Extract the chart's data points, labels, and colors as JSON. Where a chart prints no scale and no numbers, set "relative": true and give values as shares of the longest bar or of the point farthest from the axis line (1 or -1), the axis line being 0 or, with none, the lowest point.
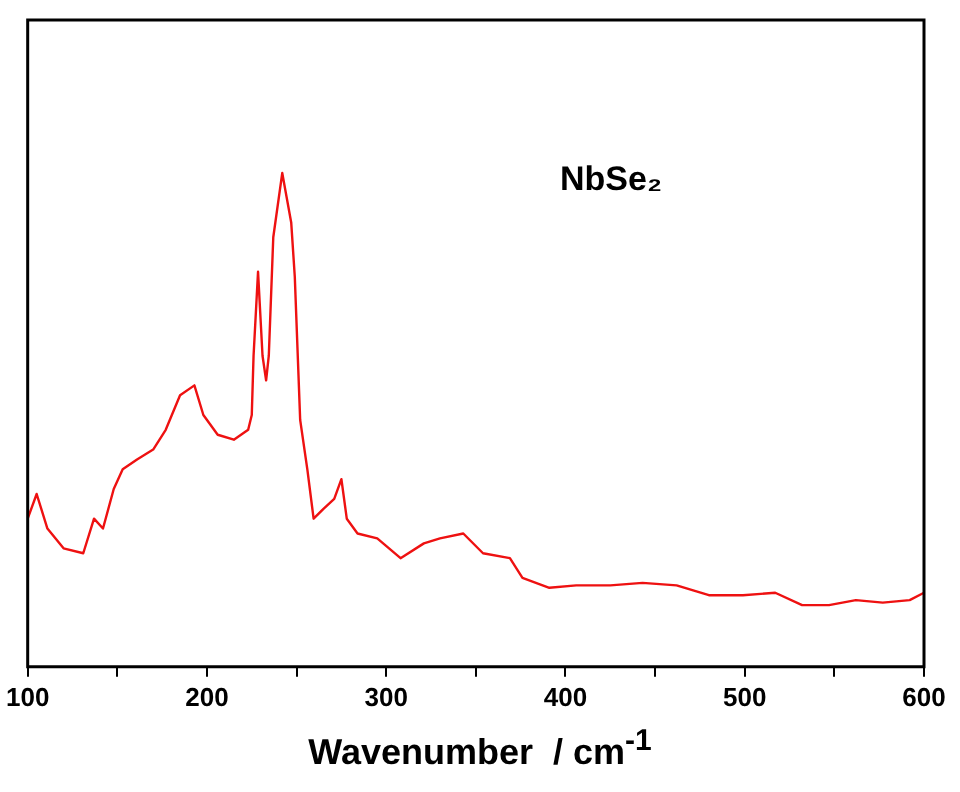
{
  "chart_data": {
    "type": "line",
    "relative": true,
    "xlabel": "Wavenumber  / cm$^{-1}$",
    "annotations": [
      "NbSe₂"
    ],
    "xlim": [
      100,
      600
    ],
    "xticks": [
      100,
      {
        "value": 150,
        "label": null
      },
      200,
      {
        "value": 250,
        "label": null
      },
      300,
      {
        "value": 350,
        "label": null
      },
      400,
      {
        "value": 450,
        "label": null
      },
      500,
      {
        "value": 550,
        "label": null
      },
      600
    ],
    "grid": false,
    "legend": false,
    "marker": "none",
    "line_style": "solid",
    "series": [
      {
        "color": "#ee1111",
        "x": [
          100,
          105,
          111,
          120,
          131,
          137,
          142,
          148,
          153,
          161,
          170,
          177,
          185,
          193,
          198,
          206,
          215,
          223,
          225,
          226,
          228.5,
          231,
          233,
          234.5,
          237,
          242,
          244.5,
          247,
          249,
          252,
          256,
          259.5,
          265,
          271,
          275,
          278,
          284,
          295,
          308,
          321,
          330,
          343,
          354,
          369,
          376,
          391,
          406,
          425,
          443,
          462,
          480,
          499,
          517,
          532,
          547,
          562,
          577,
          592,
          600
        ],
        "values": [
          0.3,
          0.35,
          0.28,
          0.24,
          0.23,
          0.3,
          0.28,
          0.36,
          0.4,
          0.42,
          0.44,
          0.48,
          0.55,
          0.57,
          0.51,
          0.47,
          0.46,
          0.48,
          0.51,
          0.63,
          0.8,
          0.63,
          0.58,
          0.63,
          0.87,
          1.0,
          0.95,
          0.9,
          0.79,
          0.5,
          0.4,
          0.3,
          0.32,
          0.34,
          0.38,
          0.3,
          0.27,
          0.26,
          0.22,
          0.25,
          0.26,
          0.27,
          0.23,
          0.22,
          0.18,
          0.16,
          0.165,
          0.165,
          0.17,
          0.165,
          0.145,
          0.145,
          0.15,
          0.125,
          0.125,
          0.135,
          0.13,
          0.135,
          0.15
        ]
      }
    ]
  }
}
